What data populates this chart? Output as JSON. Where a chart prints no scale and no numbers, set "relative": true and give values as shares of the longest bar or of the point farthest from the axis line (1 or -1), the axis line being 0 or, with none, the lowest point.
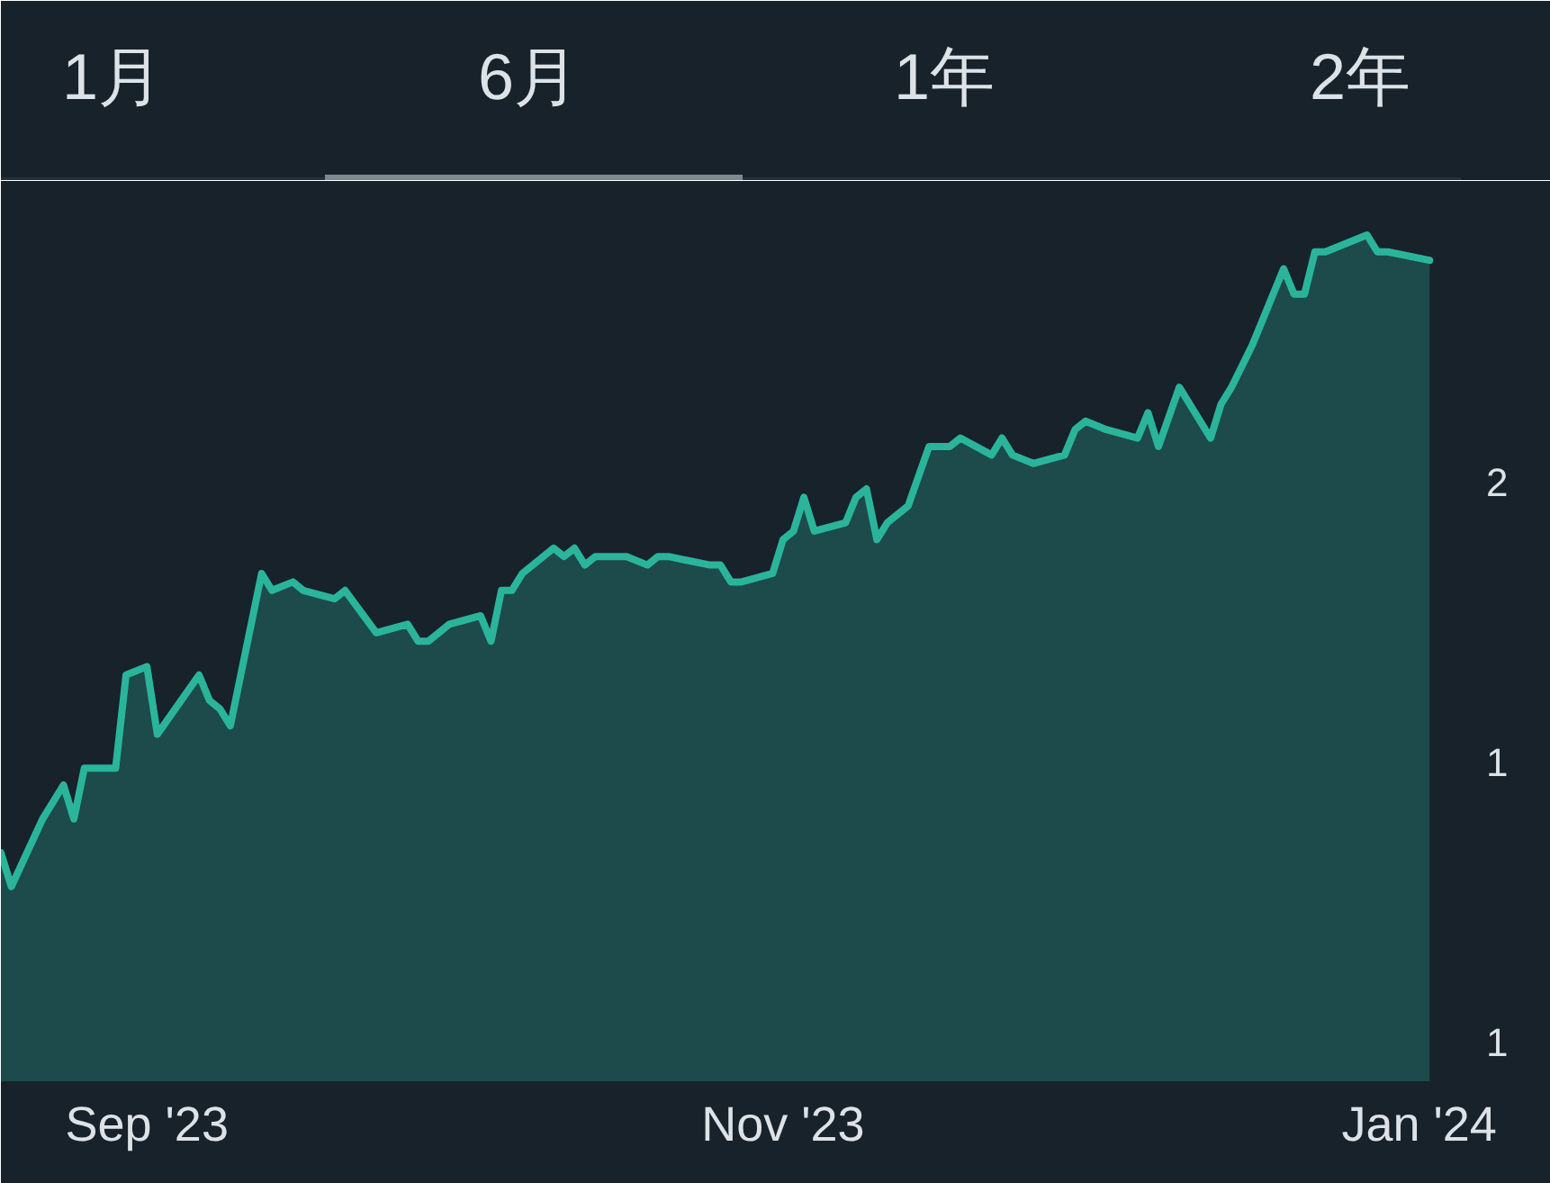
{
  "chart_data": {
    "type": "area",
    "relative": true,
    "x": [
      "2023-08-18",
      "2023-08-19",
      "2023-08-22",
      "2023-08-24",
      "2023-08-25",
      "2023-08-26",
      "2023-08-29",
      "2023-08-30",
      "2023-09-01",
      "2023-09-02",
      "2023-09-06",
      "2023-09-07",
      "2023-09-08",
      "2023-09-09",
      "2023-09-12",
      "2023-09-13",
      "2023-09-15",
      "2023-09-16",
      "2023-09-19",
      "2023-09-20",
      "2023-09-23",
      "2023-09-26",
      "2023-09-27",
      "2023-09-28",
      "2023-09-30",
      "2023-10-03",
      "2023-10-04",
      "2023-10-05",
      "2023-10-06",
      "2023-10-07",
      "2023-10-10",
      "2023-10-11",
      "2023-10-12",
      "2023-10-13",
      "2023-10-14",
      "2023-10-17",
      "2023-10-19",
      "2023-10-20",
      "2023-10-21",
      "2023-10-25",
      "2023-10-26",
      "2023-10-27",
      "2023-10-28",
      "2023-10-31",
      "2023-11-01",
      "2023-11-02",
      "2023-11-03",
      "2023-11-04",
      "2023-11-07",
      "2023-11-08",
      "2023-11-09",
      "2023-11-10",
      "2023-11-11",
      "2023-11-13",
      "2023-11-15",
      "2023-11-17",
      "2023-11-18",
      "2023-11-21",
      "2023-11-22",
      "2023-11-23",
      "2023-11-25",
      "2023-11-28",
      "2023-11-29",
      "2023-11-30",
      "2023-12-02",
      "2023-12-05",
      "2023-12-06",
      "2023-12-07",
      "2023-12-09",
      "2023-12-12",
      "2023-12-13",
      "2023-12-14",
      "2023-12-16",
      "2023-12-19",
      "2023-12-20",
      "2023-12-21",
      "2023-12-22",
      "2023-12-23",
      "2023-12-27",
      "2023-12-28",
      "2023-12-29",
      "2024-01-02"
    ],
    "series": [
      {
        "color": "#2ab59b",
        "values": [
          0.27,
          0.23,
          0.31,
          0.35,
          0.31,
          0.37,
          0.37,
          0.48,
          0.49,
          0.41,
          0.48,
          0.45,
          0.44,
          0.42,
          0.6,
          0.58,
          0.59,
          0.58,
          0.57,
          0.58,
          0.53,
          0.54,
          0.52,
          0.52,
          0.54,
          0.55,
          0.52,
          0.58,
          0.58,
          0.6,
          0.63,
          0.62,
          0.63,
          0.61,
          0.62,
          0.62,
          0.61,
          0.62,
          0.62,
          0.61,
          0.61,
          0.59,
          0.59,
          0.6,
          0.64,
          0.65,
          0.69,
          0.65,
          0.66,
          0.69,
          0.7,
          0.64,
          0.66,
          0.68,
          0.75,
          0.75,
          0.76,
          0.74,
          0.76,
          0.74,
          0.73,
          0.74,
          0.77,
          0.78,
          0.77,
          0.76,
          0.79,
          0.75,
          0.82,
          0.76,
          0.8,
          0.82,
          0.87,
          0.96,
          0.93,
          0.93,
          0.98,
          0.98,
          1.0,
          0.98,
          0.98,
          0.97
        ]
      }
    ],
    "xlim": [
      "2023-08-18",
      "2024-01-05"
    ],
    "xticks": [
      {
        "value": "2023-09-01",
        "label": "Sep '23"
      },
      {
        "value": "2023-11-01",
        "label": "Nov '23"
      },
      {
        "value": "2024-01-01",
        "label": "Jan '24"
      }
    ],
    "tick_labels": "x",
    "line_style": "solid",
    "annotations": [
      "1月",
      "6月",
      "1年",
      "2年",
      "2",
      "1",
      "1"
    ]
  }
}
